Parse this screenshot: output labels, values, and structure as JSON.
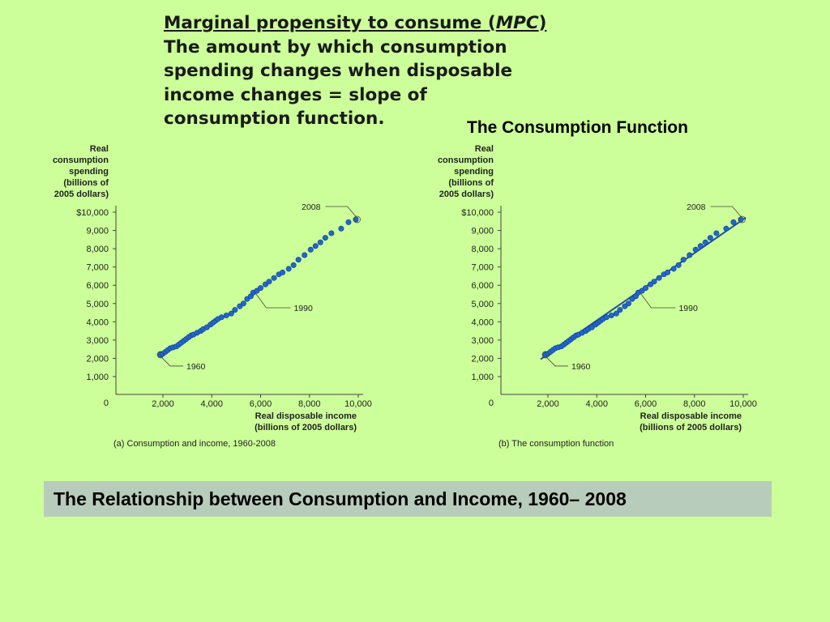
{
  "headline": {
    "line1_prefix": "Marginal propensity to consume (",
    "line1_abbrev": "MPC",
    "line1_suffix": ")",
    "line2": "The amount by which consumption",
    "line3": "spending changes when disposable",
    "line4": "income changes = slope of",
    "line5": "consumption function."
  },
  "subhead": "The Consumption Function",
  "footer_banner": "The Relationship between Consumption and Income, 1960– 2008",
  "colors": {
    "background": "#ccff99",
    "points": "#2266cc",
    "line": "#1f4e9e",
    "banner": "#b8ccbb"
  },
  "chart_data": [
    {
      "type": "scatter",
      "caption": "(a) Consumption and income, 1960-2008",
      "ylabel": [
        "Real",
        "consumption",
        "spending",
        "(billions of",
        "2005 dollars)"
      ],
      "xlabel": [
        "Real disposable income",
        "(billions of 2005 dollars)"
      ],
      "xlim": [
        0,
        10000
      ],
      "ylim": [
        0,
        10000
      ],
      "x_ticks": [
        0,
        2000,
        4000,
        6000,
        8000,
        10000
      ],
      "x_tick_labels": [
        "0",
        "2,000",
        "4,000",
        "6,000",
        "8,000",
        "10,000"
      ],
      "y_ticks": [
        0,
        1000,
        2000,
        3000,
        4000,
        5000,
        6000,
        7000,
        8000,
        9000,
        10000
      ],
      "y_tick_labels": [
        "0",
        "1,000",
        "2,000",
        "3,000",
        "4,000",
        "5,000",
        "6,000",
        "7,000",
        "8,000",
        "9,000",
        "$10,000"
      ],
      "annotations": [
        {
          "text": "2008",
          "x": 9950,
          "y": 9600,
          "side": "left"
        },
        {
          "text": "1990",
          "x": 5700,
          "y": 5700,
          "side": "right"
        },
        {
          "text": "1960",
          "x": 1900,
          "y": 2200,
          "side": "right"
        }
      ],
      "points": {
        "x": [
          1900,
          2000,
          2100,
          2200,
          2300,
          2420,
          2550,
          2650,
          2750,
          2850,
          2950,
          3050,
          3150,
          3250,
          3400,
          3550,
          3650,
          3800,
          3950,
          4050,
          4150,
          4250,
          4400,
          4600,
          4800,
          4950,
          5150,
          5300,
          5450,
          5600,
          5700,
          5850,
          6000,
          6200,
          6350,
          6550,
          6750,
          6900,
          7150,
          7350,
          7550,
          7800,
          8050,
          8250,
          8450,
          8650,
          8900,
          9300,
          9600,
          9900
        ],
        "y": [
          2200,
          2250,
          2350,
          2450,
          2550,
          2600,
          2650,
          2750,
          2850,
          2950,
          3050,
          3150,
          3250,
          3300,
          3400,
          3500,
          3600,
          3700,
          3850,
          3950,
          4050,
          4150,
          4250,
          4350,
          4450,
          4650,
          4850,
          5000,
          5250,
          5400,
          5600,
          5700,
          5850,
          6050,
          6200,
          6400,
          6600,
          6700,
          6900,
          7100,
          7400,
          7650,
          7950,
          8150,
          8350,
          8600,
          8850,
          9100,
          9450,
          9600
        ]
      }
    },
    {
      "type": "scatter",
      "caption": "(b)  The consumption function",
      "ylabel": [
        "Real",
        "consumption",
        "spending",
        "(billions of",
        "2005 dollars)"
      ],
      "xlabel": [
        "Real disposable income",
        "(billions of 2005 dollars)"
      ],
      "xlim": [
        0,
        10000
      ],
      "ylim": [
        0,
        10000
      ],
      "x_ticks": [
        0,
        2000,
        4000,
        6000,
        8000,
        10000
      ],
      "x_tick_labels": [
        "0",
        "2,000",
        "4,000",
        "6,000",
        "8,000",
        "10,000"
      ],
      "y_ticks": [
        0,
        1000,
        2000,
        3000,
        4000,
        5000,
        6000,
        7000,
        8000,
        9000,
        10000
      ],
      "y_tick_labels": [
        "0",
        "1,000",
        "2,000",
        "3,000",
        "4,000",
        "5,000",
        "6,000",
        "7,000",
        "8,000",
        "9,000",
        "$10,000"
      ],
      "annotations": [
        {
          "text": "2008",
          "x": 9950,
          "y": 9600,
          "side": "left"
        },
        {
          "text": "1990",
          "x": 5700,
          "y": 5700,
          "side": "right"
        },
        {
          "text": "1960",
          "x": 1900,
          "y": 2200,
          "side": "right"
        }
      ],
      "fit_line": {
        "x": [
          1700,
          10100
        ],
        "y": [
          1950,
          9700
        ]
      },
      "points": {
        "x": [
          1900,
          2000,
          2100,
          2200,
          2300,
          2420,
          2550,
          2650,
          2750,
          2850,
          2950,
          3050,
          3150,
          3250,
          3400,
          3550,
          3650,
          3800,
          3950,
          4050,
          4150,
          4250,
          4400,
          4600,
          4800,
          4950,
          5150,
          5300,
          5450,
          5600,
          5700,
          5850,
          6000,
          6200,
          6350,
          6550,
          6750,
          6900,
          7150,
          7350,
          7550,
          7800,
          8050,
          8250,
          8450,
          8650,
          8900,
          9300,
          9600,
          9900
        ],
        "y": [
          2200,
          2250,
          2350,
          2450,
          2550,
          2600,
          2650,
          2750,
          2850,
          2950,
          3050,
          3150,
          3250,
          3300,
          3400,
          3500,
          3600,
          3700,
          3850,
          3950,
          4050,
          4150,
          4250,
          4350,
          4450,
          4650,
          4850,
          5000,
          5250,
          5400,
          5600,
          5700,
          5850,
          6050,
          6200,
          6400,
          6600,
          6700,
          6900,
          7100,
          7400,
          7650,
          7950,
          8150,
          8350,
          8600,
          8850,
          9100,
          9450,
          9600
        ]
      }
    }
  ]
}
